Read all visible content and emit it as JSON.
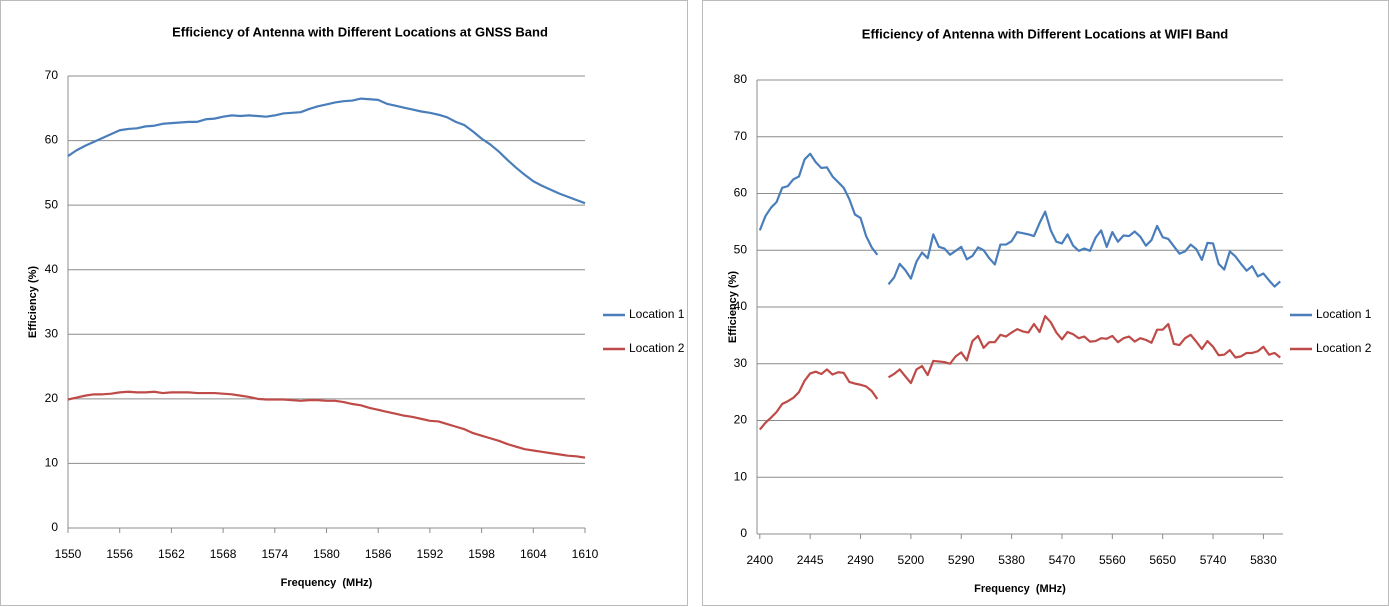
{
  "chart_data": [
    {
      "type": "line",
      "title": "Efficiency of Antenna with Different Locations at GNSS Band",
      "x_label": "Frequency  (MHz)",
      "y_label": "Efficiency (%)",
      "x": [
        1550,
        1551,
        1552,
        1553,
        1554,
        1555,
        1556,
        1557,
        1558,
        1559,
        1560,
        1561,
        1562,
        1563,
        1564,
        1565,
        1566,
        1567,
        1568,
        1569,
        1570,
        1571,
        1572,
        1573,
        1574,
        1575,
        1576,
        1577,
        1578,
        1579,
        1580,
        1581,
        1582,
        1583,
        1584,
        1585,
        1586,
        1587,
        1588,
        1589,
        1590,
        1591,
        1592,
        1593,
        1594,
        1595,
        1596,
        1597,
        1598,
        1599,
        1600,
        1601,
        1602,
        1603,
        1604,
        1605,
        1606,
        1607,
        1608,
        1609,
        1610
      ],
      "xlim": [
        1550,
        1610
      ],
      "xticks": [
        1550,
        1556,
        1562,
        1568,
        1574,
        1580,
        1586,
        1592,
        1598,
        1604,
        1610
      ],
      "ylim": [
        0,
        70
      ],
      "yticks": [
        0,
        10,
        20,
        30,
        40,
        50,
        60,
        70
      ],
      "grid": true,
      "legend": "right",
      "series": [
        {
          "name": "Location 1",
          "color": "#4a7ebb",
          "values": [
            57.6,
            58.5,
            59.2,
            59.8,
            60.4,
            61.0,
            61.6,
            61.8,
            61.9,
            62.2,
            62.3,
            62.6,
            62.7,
            62.8,
            62.9,
            62.9,
            63.3,
            63.4,
            63.7,
            63.9,
            63.8,
            63.9,
            63.8,
            63.7,
            63.9,
            64.2,
            64.3,
            64.4,
            64.9,
            65.3,
            65.6,
            65.9,
            66.1,
            66.2,
            66.5,
            66.4,
            66.3,
            65.7,
            65.4,
            65.1,
            64.8,
            64.5,
            64.3,
            64.0,
            63.6,
            62.9,
            62.4,
            61.4,
            60.3,
            59.4,
            58.3,
            57.0,
            55.8,
            54.7,
            53.7,
            53.0,
            52.4,
            51.8,
            51.3,
            50.8,
            50.3
          ]
        },
        {
          "name": "Location 2",
          "color": "#be4b48",
          "values": [
            19.9,
            20.2,
            20.5,
            20.7,
            20.7,
            20.8,
            21.0,
            21.1,
            21.0,
            21.0,
            21.1,
            20.9,
            21.0,
            21.0,
            21.0,
            20.9,
            20.9,
            20.9,
            20.8,
            20.7,
            20.5,
            20.3,
            20.0,
            19.9,
            19.9,
            19.9,
            19.8,
            19.7,
            19.8,
            19.8,
            19.7,
            19.7,
            19.5,
            19.2,
            19.0,
            18.6,
            18.3,
            18.0,
            17.7,
            17.4,
            17.2,
            16.9,
            16.6,
            16.5,
            16.1,
            15.7,
            15.3,
            14.7,
            14.3,
            13.9,
            13.5,
            13.0,
            12.6,
            12.2,
            12.0,
            11.8,
            11.6,
            11.4,
            11.2,
            11.1,
            10.9
          ]
        }
      ]
    },
    {
      "type": "line",
      "title": "Efficiency of Antenna with Different Locations at WIFI Band",
      "x_label": "Frequency  (MHz)",
      "y_label": "Efficiency (%)",
      "categories": [
        "2400",
        null,
        null,
        null,
        null,
        null,
        null,
        null,
        null,
        "2445",
        null,
        null,
        null,
        null,
        null,
        null,
        null,
        null,
        "2490",
        null,
        null,
        null,
        null,
        null,
        null,
        null,
        null,
        "5200",
        null,
        null,
        null,
        null,
        null,
        null,
        null,
        null,
        "5290",
        null,
        null,
        null,
        null,
        null,
        null,
        null,
        null,
        "5380",
        null,
        null,
        null,
        null,
        null,
        null,
        null,
        null,
        "5470",
        null,
        null,
        null,
        null,
        null,
        null,
        null,
        null,
        "5560",
        null,
        null,
        null,
        null,
        null,
        null,
        null,
        null,
        "5650",
        null,
        null,
        null,
        null,
        null,
        null,
        null,
        null,
        "5740",
        null,
        null,
        null,
        null,
        null,
        null,
        null,
        null,
        "5830",
        null,
        null,
        null
      ],
      "ylim": [
        0,
        80
      ],
      "yticks": [
        0,
        10,
        20,
        30,
        40,
        50,
        60,
        70,
        80
      ],
      "grid": true,
      "legend": "right",
      "series": [
        {
          "name": "Location 1",
          "color": "#4a7ebb",
          "values": [
            53.5,
            56,
            57.5,
            58.5,
            61,
            61.3,
            62.5,
            63,
            66,
            67,
            65.5,
            64.5,
            64.6,
            63,
            62,
            61,
            59,
            56.3,
            55.7,
            52.5,
            50.5,
            49.2,
            null,
            44,
            45.2,
            47.6,
            46.5,
            45,
            48,
            49.6,
            48.6,
            52.8,
            50.6,
            50.3,
            49.2,
            49.9,
            50.6,
            48.4,
            49,
            50.5,
            50,
            48.6,
            47.5,
            51,
            51,
            51.6,
            53.2,
            53,
            52.8,
            52.5,
            54.8,
            56.8,
            53.5,
            51.5,
            51.2,
            52.8,
            50.8,
            49.9,
            50.3,
            49.9,
            52.2,
            53.5,
            50.6,
            53.2,
            51.5,
            52.6,
            52.5,
            53.3,
            52.4,
            50.8,
            51.8,
            54.3,
            52.3,
            52,
            50.7,
            49.4,
            49.8,
            51,
            50.2,
            48.3,
            51.3,
            51.2,
            47.6,
            46.6,
            49.8,
            48.9,
            47.6,
            46.4,
            47.2,
            45.4,
            45.9,
            44.7,
            43.6,
            44.5
          ]
        },
        {
          "name": "Location 2",
          "color": "#be4b48",
          "values": [
            18.4,
            19.6,
            20.5,
            21.5,
            22.9,
            23.4,
            24,
            25,
            27,
            28.3,
            28.6,
            28.2,
            29,
            28.1,
            28.5,
            28.4,
            26.8,
            26.5,
            26.3,
            26,
            25.2,
            23.8,
            null,
            27.6,
            28.2,
            29,
            27.8,
            26.6,
            29,
            29.6,
            28,
            30.5,
            30.4,
            30.3,
            30,
            31.3,
            32,
            30.6,
            34,
            34.9,
            32.8,
            33.8,
            33.8,
            35.1,
            34.8,
            35.5,
            36.1,
            35.7,
            35.5,
            37,
            35.6,
            38.4,
            37.3,
            35.5,
            34.3,
            35.6,
            35.2,
            34.5,
            34.8,
            33.9,
            34,
            34.5,
            34.4,
            34.9,
            33.8,
            34.5,
            34.8,
            33.9,
            34.5,
            34.2,
            33.7,
            36,
            36,
            37,
            33.5,
            33.3,
            34.5,
            35.1,
            33.9,
            32.6,
            34,
            33,
            31.5,
            31.6,
            32.4,
            31.1,
            31.3,
            31.9,
            31.9,
            32.2,
            33,
            31.6,
            31.9,
            31.1
          ]
        }
      ]
    }
  ]
}
